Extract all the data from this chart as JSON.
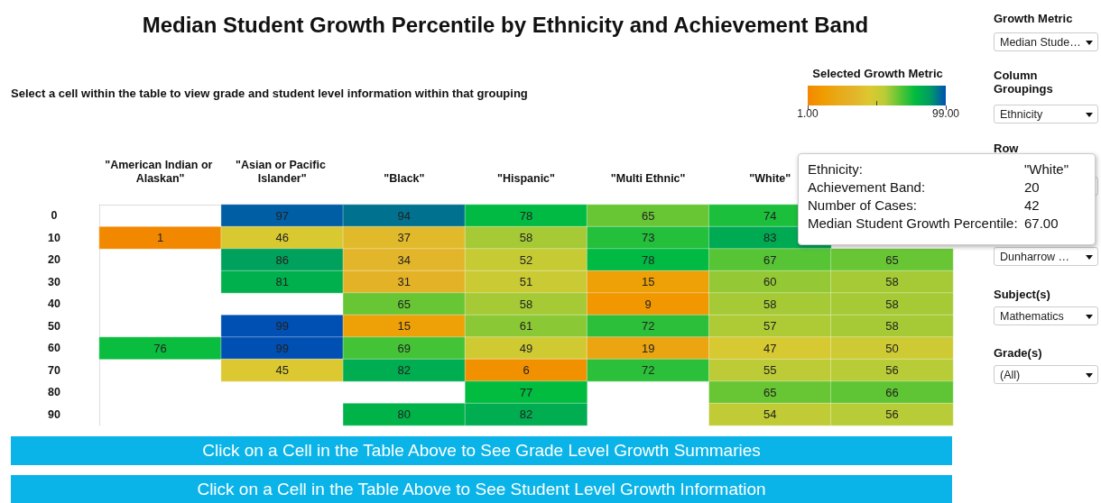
{
  "chart_data": {
    "type": "heatmap",
    "title": "Median Student Growth Percentile by Ethnicity and Achievement Band",
    "subtitle": "Select a cell within the table to view grade and student level information within that grouping",
    "clabel": "Selected Growth Metric",
    "clim": [
      1,
      99
    ],
    "cticks": [
      {
        "value": 1,
        "label": "1.00"
      },
      {
        "value": 50,
        "label": null
      },
      {
        "value": 99,
        "label": "99.00"
      }
    ],
    "categories": [
      "\"American Indian or Alaskan\"",
      "\"Asian or Pacific Islander\"",
      "\"Black\"",
      "\"Hispanic\"",
      "\"Multi Ethnic\"",
      "\"White\"",
      null
    ],
    "y_categories": [
      "0",
      "10",
      "20",
      "30",
      "40",
      "50",
      "60",
      "70",
      "80",
      "90"
    ],
    "cells": [
      [
        null,
        97,
        94,
        78,
        65,
        74,
        null
      ],
      [
        1,
        46,
        37,
        58,
        73,
        83,
        null
      ],
      [
        null,
        86,
        34,
        52,
        78,
        67,
        65
      ],
      [
        null,
        81,
        31,
        51,
        15,
        60,
        58
      ],
      [
        null,
        null,
        65,
        58,
        9,
        58,
        58
      ],
      [
        null,
        99,
        15,
        61,
        72,
        57,
        58
      ],
      [
        76,
        99,
        69,
        49,
        19,
        47,
        50
      ],
      [
        null,
        45,
        82,
        6,
        72,
        55,
        56
      ],
      [
        null,
        null,
        null,
        77,
        null,
        65,
        66
      ],
      [
        null,
        null,
        80,
        82,
        null,
        54,
        56
      ]
    ],
    "data_labels": true,
    "annotations": [
      "Ethnicity:",
      "\"White\"",
      "Achievement Band:",
      "20",
      "Number of Cases:",
      "42",
      "Median Student Growth Percentile:",
      "67.00",
      "Growth Metric",
      "Median Stude…",
      "Column Groupings",
      "Ethnicity",
      "Row",
      "Dunharrow …",
      "Subject(s)",
      "Mathematics",
      "Grade(s)",
      "(All)",
      "Click on a Cell in the Table Above to See Grade Level Growth Summaries",
      "Click on a Cell in the Table Above to See Student Level Growth Information"
    ]
  }
}
